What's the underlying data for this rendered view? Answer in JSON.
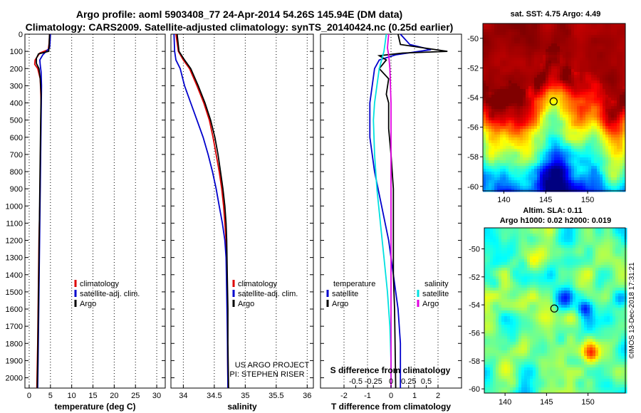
{
  "header": {
    "line1": "Argo profile: aoml 5903408_77 24-Apr-2014 54.26S 145.94E (DM data)",
    "line2": "Climatology: CARS2009. Satellite-adjusted climatology: synTS_20140424.nc (0.25d earlier)"
  },
  "depth_ticks": [
    "0",
    "100",
    "200",
    "300",
    "400",
    "500",
    "600",
    "700",
    "800",
    "900",
    "1000",
    "1100",
    "1200",
    "1300",
    "1400",
    "1500",
    "1600",
    "1700",
    "1800",
    "1900",
    "2000"
  ],
  "colors": {
    "climatology": "#dd0000",
    "satellite": "#0000cc",
    "argo": "#000000",
    "sat_salinity": "#00e0e0",
    "argo_salinity": "#e000e0"
  },
  "chart_data": [
    {
      "type": "line",
      "id": "temperature",
      "xlabel": "temperature (deg C)",
      "xlim": [
        -1,
        32
      ],
      "ylim": [
        0,
        2060
      ],
      "xticks": [
        "0",
        "5",
        "10",
        "15",
        "20",
        "25",
        "30"
      ],
      "legend": [
        "climatology",
        "satellite-adj. clim.",
        "Argo"
      ],
      "series": [
        {
          "name": "climatology",
          "color": "#dd0000",
          "points": [
            [
              4.8,
              0
            ],
            [
              4.7,
              50
            ],
            [
              4.5,
              90
            ],
            [
              2.5,
              110
            ],
            [
              1.4,
              150
            ],
            [
              1.3,
              175
            ],
            [
              2.0,
              200
            ],
            [
              2.6,
              260
            ],
            [
              2.8,
              400
            ],
            [
              2.7,
              600
            ],
            [
              2.6,
              800
            ],
            [
              2.5,
              1000
            ],
            [
              2.3,
              1200
            ],
            [
              2.2,
              1400
            ],
            [
              2.1,
              1600
            ],
            [
              2.0,
              1800
            ],
            [
              1.8,
              2060
            ]
          ]
        },
        {
          "name": "satellite-adj. clim.",
          "color": "#0000cc",
          "points": [
            [
              5.0,
              0
            ],
            [
              4.9,
              50
            ],
            [
              4.8,
              80
            ],
            [
              3.2,
              120
            ],
            [
              2.5,
              150
            ],
            [
              2.6,
              180
            ],
            [
              2.8,
              220
            ],
            [
              2.9,
              300
            ],
            [
              2.8,
              500
            ],
            [
              2.7,
              700
            ],
            [
              2.6,
              900
            ],
            [
              2.5,
              1100
            ],
            [
              2.4,
              1300
            ],
            [
              2.3,
              1500
            ],
            [
              2.2,
              1700
            ],
            [
              2.1,
              1900
            ],
            [
              2.0,
              2060
            ]
          ]
        },
        {
          "name": "Argo",
          "color": "#000000",
          "points": [
            [
              4.8,
              0
            ],
            [
              4.7,
              60
            ],
            [
              4.6,
              100
            ],
            [
              2.2,
              115
            ],
            [
              1.7,
              140
            ],
            [
              1.7,
              170
            ],
            [
              2.3,
              200
            ],
            [
              2.6,
              260
            ],
            [
              2.8,
              350
            ],
            [
              2.7,
              500
            ],
            [
              2.6,
              700
            ],
            [
              2.5,
              900
            ],
            [
              2.4,
              1100
            ],
            [
              2.3,
              1300
            ],
            [
              2.2,
              1500
            ],
            [
              2.1,
              1700
            ],
            [
              2.0,
              1900
            ],
            [
              1.9,
              2060
            ]
          ]
        }
      ]
    },
    {
      "type": "line",
      "id": "salinity",
      "xlabel": "salinity",
      "xlim": [
        33.8,
        36.1
      ],
      "ylim": [
        0,
        2060
      ],
      "xticks": [
        "34",
        "34.5",
        "35",
        "35.5",
        "36"
      ],
      "legend": [
        "climatology",
        "satellite-adj. clim.",
        "Argo"
      ],
      "credit1": "US ARGO PROJECT",
      "credit2": "PI: STEPHEN RISER",
      "series": [
        {
          "name": "climatology",
          "color": "#dd0000",
          "points": [
            [
              33.88,
              0
            ],
            [
              33.92,
              100
            ],
            [
              34.0,
              150
            ],
            [
              34.1,
              200
            ],
            [
              34.22,
              300
            ],
            [
              34.33,
              400
            ],
            [
              34.42,
              500
            ],
            [
              34.48,
              600
            ],
            [
              34.53,
              700
            ],
            [
              34.58,
              800
            ],
            [
              34.62,
              900
            ],
            [
              34.65,
              1000
            ],
            [
              34.67,
              1100
            ],
            [
              34.69,
              1200
            ],
            [
              34.7,
              1400
            ],
            [
              34.71,
              1600
            ],
            [
              34.72,
              2060
            ]
          ]
        },
        {
          "name": "satellite-adj. clim.",
          "color": "#0000cc",
          "points": [
            [
              33.85,
              0
            ],
            [
              33.86,
              100
            ],
            [
              33.88,
              150
            ],
            [
              33.95,
              200
            ],
            [
              34.02,
              300
            ],
            [
              34.12,
              400
            ],
            [
              34.22,
              500
            ],
            [
              34.32,
              600
            ],
            [
              34.4,
              700
            ],
            [
              34.47,
              800
            ],
            [
              34.53,
              900
            ],
            [
              34.58,
              1000
            ],
            [
              34.63,
              1100
            ],
            [
              34.67,
              1200
            ],
            [
              34.69,
              1300
            ],
            [
              34.7,
              1500
            ],
            [
              34.71,
              1700
            ],
            [
              34.72,
              2060
            ]
          ]
        },
        {
          "name": "Argo",
          "color": "#000000",
          "points": [
            [
              33.9,
              0
            ],
            [
              33.93,
              100
            ],
            [
              34.02,
              150
            ],
            [
              34.12,
              200
            ],
            [
              34.24,
              300
            ],
            [
              34.35,
              400
            ],
            [
              34.44,
              500
            ],
            [
              34.51,
              600
            ],
            [
              34.56,
              700
            ],
            [
              34.6,
              800
            ],
            [
              34.64,
              900
            ],
            [
              34.67,
              1000
            ],
            [
              34.69,
              1100
            ],
            [
              34.7,
              1200
            ],
            [
              34.71,
              1400
            ],
            [
              34.72,
              1600
            ],
            [
              34.72,
              1800
            ],
            [
              34.73,
              2060
            ]
          ]
        }
      ]
    },
    {
      "type": "line",
      "id": "difference",
      "xlabel": "T difference from climatology",
      "xlabel2": "S difference from climatology",
      "xlim": [
        -3,
        3
      ],
      "ylim": [
        0,
        2060
      ],
      "xticks": [
        "-2",
        "-1",
        "0",
        "1",
        "2"
      ],
      "s_ticks": [
        "-0.5",
        "-0.25",
        "0",
        "0.25",
        "0.5"
      ],
      "legend_t_title": "temperature",
      "legend_s_title": "salinity",
      "legend_t": [
        "satellite",
        "Argo"
      ],
      "legend_s": [
        "satellite",
        "Argo"
      ],
      "series": [
        {
          "name": "T satellite",
          "color": "#0000cc",
          "points": [
            [
              0.4,
              0
            ],
            [
              0.8,
              60
            ],
            [
              1.7,
              90
            ],
            [
              0.2,
              120
            ],
            [
              -0.5,
              150
            ],
            [
              -0.7,
              200
            ],
            [
              -0.8,
              300
            ],
            [
              -0.9,
              400
            ],
            [
              -0.9,
              600
            ],
            [
              -0.7,
              800
            ],
            [
              -0.4,
              1000
            ],
            [
              -0.1,
              1200
            ],
            [
              0.1,
              1400
            ],
            [
              0.3,
              1600
            ],
            [
              0.4,
              1800
            ],
            [
              0.4,
              2060
            ]
          ]
        },
        {
          "name": "T Argo",
          "color": "#000000",
          "points": [
            [
              0.3,
              0
            ],
            [
              0.4,
              60
            ],
            [
              2.4,
              100
            ],
            [
              0.5,
              110
            ],
            [
              -0.5,
              125
            ],
            [
              -0.2,
              150
            ],
            [
              -0.5,
              200
            ],
            [
              -0.1,
              260
            ],
            [
              -0.2,
              350
            ],
            [
              -0.1,
              400
            ],
            [
              -0.1,
              550
            ],
            [
              0.0,
              700
            ],
            [
              0.1,
              900
            ],
            [
              0.1,
              1200
            ],
            [
              0.1,
              1400
            ],
            [
              0.15,
              1600
            ],
            [
              0.2,
              2060
            ]
          ]
        },
        {
          "name": "S satellite",
          "color": "#00e0e0",
          "points": [
            [
              -0.2,
              0
            ],
            [
              -0.3,
              100
            ],
            [
              -0.5,
              200
            ],
            [
              -0.6,
              300
            ],
            [
              -0.7,
              400
            ],
            [
              -0.75,
              500
            ],
            [
              -0.7,
              700
            ],
            [
              -0.6,
              900
            ],
            [
              -0.45,
              1100
            ],
            [
              -0.3,
              1300
            ],
            [
              -0.15,
              1500
            ],
            [
              -0.05,
              1700
            ],
            [
              0.0,
              1900
            ],
            [
              0.0,
              2060
            ]
          ]
        },
        {
          "name": "S Argo",
          "color": "#e000e0",
          "points": [
            [
              -0.1,
              0
            ],
            [
              -0.15,
              80
            ],
            [
              -0.1,
              120
            ],
            [
              -0.05,
              200
            ],
            [
              0.0,
              400
            ],
            [
              0.0,
              800
            ],
            [
              0.0,
              1200
            ],
            [
              0.0,
              1600
            ],
            [
              0.0,
              2060
            ]
          ]
        }
      ]
    },
    {
      "type": "heatmap",
      "id": "sst_map",
      "title": "sat. SST: 4.75 Argo: 4.49",
      "xlim": [
        137.5,
        154.5
      ],
      "ylim": [
        -60.3,
        -49
      ],
      "xticks": [
        "140",
        "145",
        "150"
      ],
      "yticks": [
        "-50",
        "-52",
        "-54",
        "-56",
        "-58",
        "-60"
      ],
      "marker": [
        145.94,
        -54.26
      ]
    },
    {
      "type": "heatmap",
      "id": "sla_map",
      "title": "Altim. SLA: 0.11",
      "subtitle": "Argo h1000: 0.02 h2000: 0.019",
      "xlim": [
        137.5,
        154.5
      ],
      "ylim": [
        -60.3,
        -48.5
      ],
      "xticks": [
        "140",
        "145",
        "150"
      ],
      "yticks": [
        "-50",
        "-52",
        "-54",
        "-56",
        "-58",
        "-60"
      ],
      "marker": [
        145.94,
        -54.26
      ],
      "stamp": "©IMOS 13-Dec-2018 17:31:21"
    }
  ]
}
